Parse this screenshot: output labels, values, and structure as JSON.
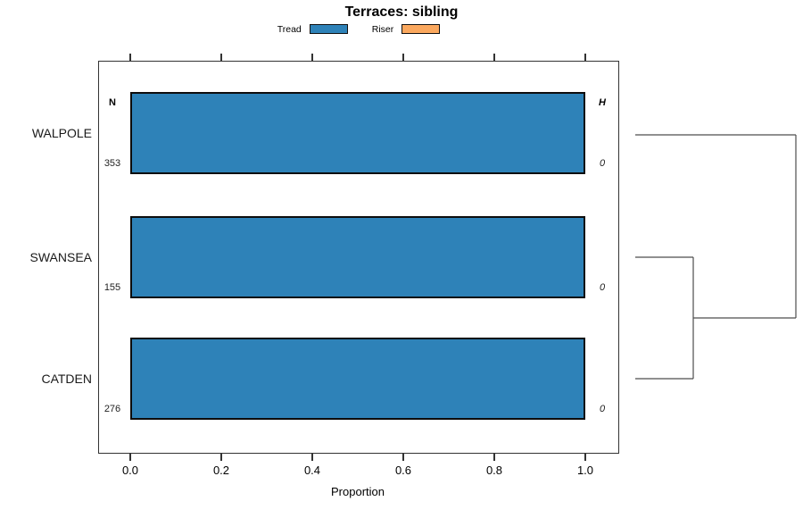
{
  "chart_data": {
    "type": "bar",
    "orientation": "horizontal",
    "title": "Terraces: sibling",
    "xlabel": "Proportion",
    "xlim": [
      0,
      1
    ],
    "x_tick_values": [
      0,
      0.2,
      0.4,
      0.6,
      0.8,
      1.0
    ],
    "x_tick_labels": [
      "0.0",
      "0.2",
      "0.4",
      "0.6",
      "0.8",
      "1.0"
    ],
    "grid": false,
    "legend_position": "top-center",
    "columns": {
      "left_header": "N",
      "right_header": "H"
    },
    "categories": [
      "WALPOLE",
      "SWANSEA",
      "CATDEN"
    ],
    "rows": [
      {
        "label": "WALPOLE",
        "n": "353",
        "h": "0",
        "tread": 1.0,
        "riser": 0.0
      },
      {
        "label": "SWANSEA",
        "n": "155",
        "h": "0",
        "tread": 1.0,
        "riser": 0.0
      },
      {
        "label": "CATDEN",
        "n": "276",
        "h": "0",
        "tread": 1.0,
        "riser": 0.0
      }
    ],
    "series": [
      {
        "name": "Tread",
        "values": [
          1.0,
          1.0,
          1.0
        ],
        "color": "#2E82B8"
      },
      {
        "name": "Riser",
        "values": [
          0.0,
          0.0,
          0.0
        ],
        "color": "#FBA85E"
      }
    ],
    "dendrogram": {
      "description": "cluster tree on right side; SWANSEA and CATDEN join first, then WALPOLE joins their cluster",
      "joins": [
        [
          "SWANSEA",
          "CATDEN"
        ],
        [
          "WALPOLE",
          "(SWANSEA,CATDEN)"
        ]
      ]
    }
  },
  "legend": {
    "items": [
      {
        "label": "Tread",
        "color": "#2E82B8"
      },
      {
        "label": "Riser",
        "color": "#FBA85E"
      }
    ]
  },
  "colors": {
    "bar_fill": "#2E82B8",
    "bar_border": "#0d0d0d",
    "box_border": "#333333",
    "dendrogram_line": "#4d4d4d"
  }
}
